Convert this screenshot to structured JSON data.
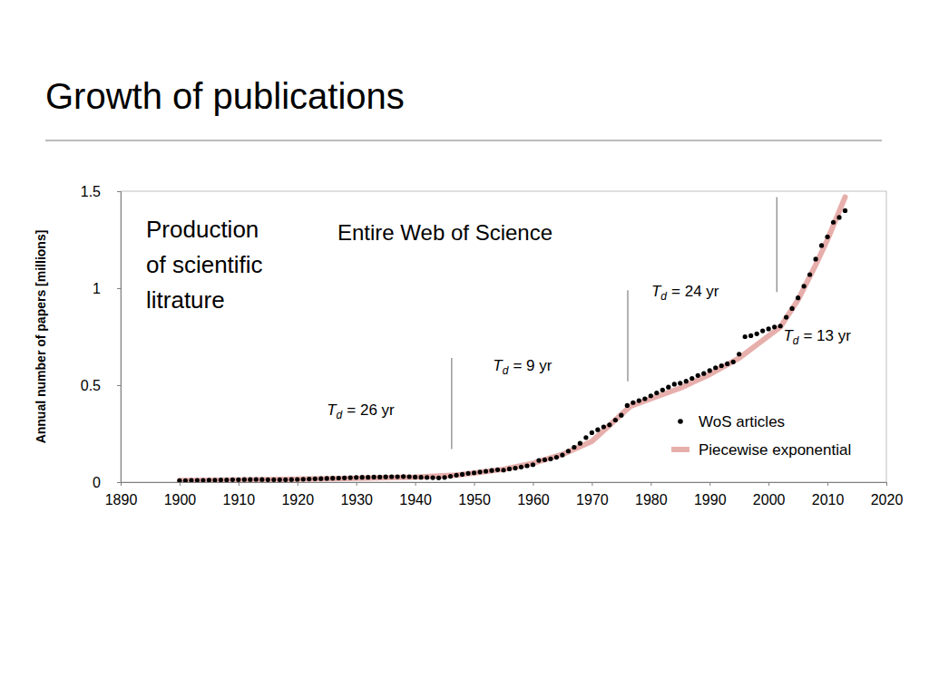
{
  "chart_data": {
    "type": "scatter",
    "title": "Growth of publications",
    "subtitle": "Entire Web of Science",
    "text_box": [
      "Production",
      "of scientific",
      "litrature"
    ],
    "y_label": "Annual number of papers [millions]",
    "xlim": [
      1890,
      2020
    ],
    "xticks": [
      1890,
      1900,
      1910,
      1920,
      1930,
      1940,
      1950,
      1960,
      1970,
      1980,
      1990,
      2000,
      2010,
      2020
    ],
    "ylim": [
      0,
      1.5
    ],
    "yticks": [
      0,
      0.5,
      1,
      1.5
    ],
    "grid": false,
    "legend": "lower right",
    "series": [
      {
        "name": "WoS articles",
        "type": "scatter",
        "marker": "circle",
        "color": "#000000",
        "x": [
          1900,
          1901,
          1902,
          1903,
          1904,
          1905,
          1906,
          1907,
          1908,
          1909,
          1910,
          1911,
          1912,
          1913,
          1914,
          1915,
          1916,
          1917,
          1918,
          1919,
          1920,
          1921,
          1922,
          1923,
          1924,
          1925,
          1926,
          1927,
          1928,
          1929,
          1930,
          1931,
          1932,
          1933,
          1934,
          1935,
          1936,
          1937,
          1938,
          1939,
          1940,
          1941,
          1942,
          1943,
          1944,
          1945,
          1946,
          1947,
          1948,
          1949,
          1950,
          1951,
          1952,
          1953,
          1954,
          1955,
          1956,
          1957,
          1958,
          1959,
          1960,
          1961,
          1962,
          1963,
          1964,
          1965,
          1966,
          1967,
          1968,
          1969,
          1970,
          1971,
          1972,
          1973,
          1974,
          1975,
          1976,
          1977,
          1978,
          1979,
          1980,
          1981,
          1982,
          1983,
          1984,
          1985,
          1986,
          1987,
          1988,
          1989,
          1990,
          1991,
          1992,
          1993,
          1994,
          1995,
          1996,
          1997,
          1998,
          1999,
          2000,
          2001,
          2002,
          2003,
          2004,
          2005,
          2006,
          2007,
          2008,
          2009,
          2010,
          2011,
          2012,
          2013
        ],
        "values": [
          0.008,
          0.008,
          0.009,
          0.009,
          0.009,
          0.01,
          0.01,
          0.011,
          0.011,
          0.012,
          0.012,
          0.013,
          0.013,
          0.014,
          0.013,
          0.012,
          0.012,
          0.012,
          0.012,
          0.013,
          0.014,
          0.015,
          0.016,
          0.017,
          0.018,
          0.019,
          0.02,
          0.021,
          0.022,
          0.023,
          0.024,
          0.025,
          0.025,
          0.026,
          0.026,
          0.027,
          0.028,
          0.028,
          0.029,
          0.028,
          0.026,
          0.025,
          0.024,
          0.023,
          0.022,
          0.024,
          0.03,
          0.036,
          0.04,
          0.045,
          0.048,
          0.052,
          0.056,
          0.06,
          0.064,
          0.062,
          0.068,
          0.072,
          0.078,
          0.084,
          0.09,
          0.112,
          0.115,
          0.12,
          0.128,
          0.14,
          0.16,
          0.18,
          0.2,
          0.23,
          0.255,
          0.27,
          0.285,
          0.295,
          0.32,
          0.345,
          0.395,
          0.41,
          0.42,
          0.43,
          0.445,
          0.46,
          0.475,
          0.49,
          0.505,
          0.51,
          0.52,
          0.535,
          0.55,
          0.56,
          0.575,
          0.59,
          0.6,
          0.61,
          0.62,
          0.66,
          0.75,
          0.755,
          0.765,
          0.78,
          0.79,
          0.8,
          0.805,
          0.85,
          0.895,
          0.95,
          1.01,
          1.07,
          1.15,
          1.22,
          1.265,
          1.34,
          1.365,
          1.4
        ]
      },
      {
        "name": "Piecewise exponential",
        "type": "line",
        "line_style": "solid",
        "color": "#e3a19e",
        "x": [
          1900,
          1910,
          1920,
          1930,
          1940,
          1947,
          1955,
          1960,
          1965,
          1970,
          1976.5,
          1980,
          1985,
          1990,
          1995,
          2002,
          2005,
          2008,
          2010,
          2013
        ],
        "values": [
          0.008,
          0.011,
          0.015,
          0.02,
          0.026,
          0.036,
          0.066,
          0.097,
          0.143,
          0.21,
          0.39,
          0.43,
          0.485,
          0.555,
          0.64,
          0.8,
          0.94,
          1.12,
          1.25,
          1.47
        ]
      }
    ],
    "breaks": [
      {
        "x": 1946.2,
        "y": [
          0.17,
          0.64
        ]
      },
      {
        "x": 1976.1,
        "y": [
          0.52,
          0.99
        ]
      },
      {
        "x": 2001.4,
        "y": [
          0.98,
          1.47
        ]
      }
    ],
    "annotations": [
      {
        "symbol": "T",
        "subscript": "d",
        "text": "= 26 yr",
        "x": 1925,
        "y": 0.347
      },
      {
        "symbol": "T",
        "subscript": "d",
        "text": "= 9 yr",
        "x": 1953.2,
        "y": 0.577
      },
      {
        "symbol": "T",
        "subscript": "d",
        "text": "= 24 yr",
        "x": 1980.1,
        "y": 0.96
      },
      {
        "symbol": "T",
        "subscript": "d",
        "text": "= 13 yr",
        "x": 2002.5,
        "y": 0.73
      }
    ]
  }
}
